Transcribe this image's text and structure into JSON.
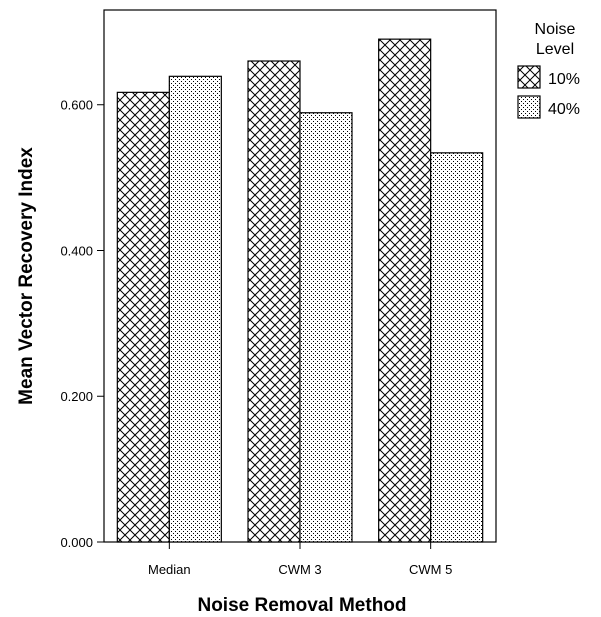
{
  "chart_data": {
    "type": "bar",
    "title": "",
    "xlabel": "Noise Removal Method",
    "ylabel": "Mean Vector Recovery Index",
    "categories": [
      "Median",
      "CWM 3",
      "CWM 5"
    ],
    "series": [
      {
        "name": "10%",
        "values": [
          0.617,
          0.66,
          0.69
        ],
        "pattern": "crosshatch"
      },
      {
        "name": "40%",
        "values": [
          0.639,
          0.589,
          0.534
        ],
        "pattern": "dots"
      }
    ],
    "ylim": [
      0,
      0.73
    ],
    "yticks": [
      0.0,
      0.2,
      0.4,
      0.6
    ],
    "ytick_labels": [
      "0.000",
      "0.200",
      "0.400",
      "0.600"
    ],
    "grid": false,
    "legend": {
      "title_lines": [
        "Noise",
        "Level"
      ],
      "placement": "right"
    }
  }
}
